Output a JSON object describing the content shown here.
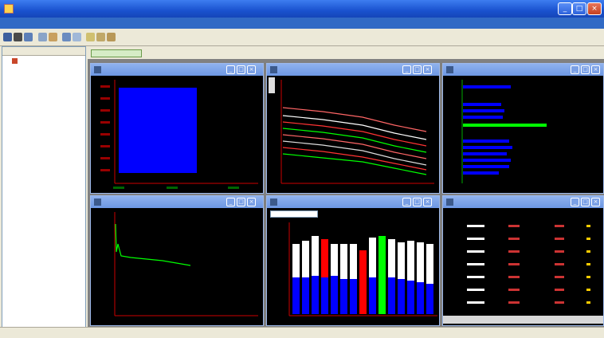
{
  "window": {
    "title": ""
  },
  "menu": [],
  "sidebar": {
    "header": "",
    "tree": [
      {
        "label": ""
      }
    ]
  },
  "tab": {
    "label": ""
  },
  "panels": {
    "p1": {
      "title": ""
    },
    "p2": {
      "title": ""
    },
    "p3": {
      "title": ""
    },
    "p4": {
      "title": ""
    },
    "p5": {
      "title": "",
      "selector": ""
    },
    "p6": {
      "title": ""
    }
  },
  "table": {
    "headers": [],
    "rows": []
  },
  "colors": {
    "blue": "#0000ff",
    "red": "#ff0000",
    "green": "#00ff00",
    "white": "#ffffff",
    "axis": "#cc0000"
  },
  "status": {
    "text": ""
  }
}
